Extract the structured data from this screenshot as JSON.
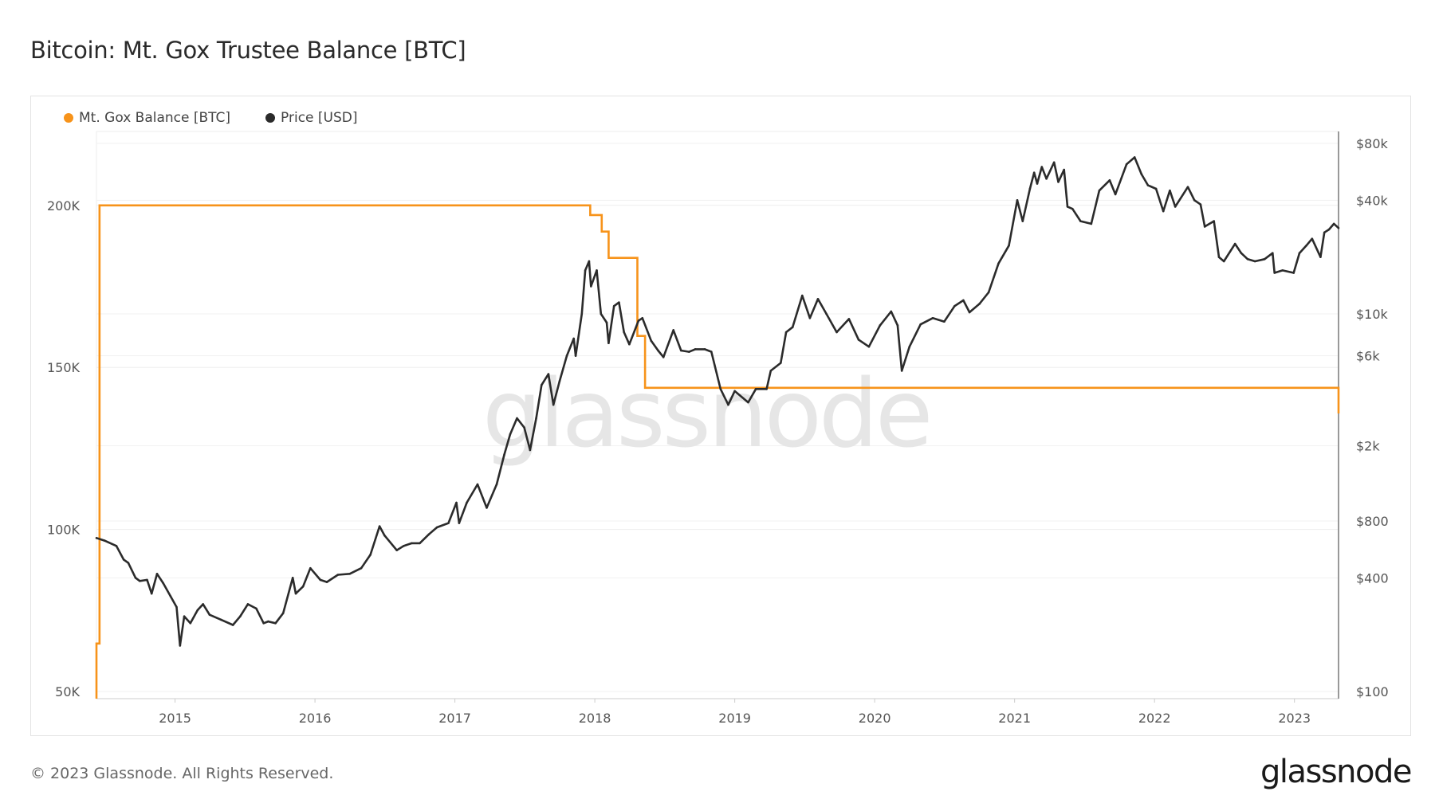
{
  "header": {
    "title": "Bitcoin: Mt. Gox Trustee Balance [BTC]"
  },
  "footer": {
    "copyright": "© 2023 Glassnode. All Rights Reserved.",
    "logo": "glassnode"
  },
  "watermark": "glassnode",
  "chart_data": {
    "type": "line",
    "title": "Bitcoin: Mt. Gox Trustee Balance [BTC]",
    "legend_position": "top-left",
    "grid": true,
    "colors": {
      "balance": "#f7931a",
      "price": "#2b2b2b"
    },
    "x_ticks": [
      "2015",
      "2016",
      "2017",
      "2018",
      "2019",
      "2020",
      "2021",
      "2022",
      "2023"
    ],
    "xlim": [
      "2014-06-10",
      "2023-04-26"
    ],
    "y_left": {
      "ticks": [
        50000,
        100000,
        150000,
        200000
      ],
      "tick_labels": [
        "50K",
        "100K",
        "150K",
        "200K"
      ],
      "scale": "linear",
      "ylim": [
        47800,
        222800
      ]
    },
    "y_right": {
      "ticks": [
        100,
        400,
        800,
        2000,
        6000,
        10000,
        40000,
        80000
      ],
      "tick_labels": [
        "$100",
        "$400",
        "$800",
        "$2k",
        "$6k",
        "$10k",
        "$40k",
        "$80k"
      ],
      "scale": "log",
      "ylim": [
        100,
        80000
      ]
    },
    "series": [
      {
        "name": "Mt. Gox Balance [BTC]",
        "axis": "left",
        "step": true,
        "x": [
          "2014-06-10",
          "2014-06-18",
          "2017-12-18",
          "2017-12-20",
          "2018-01-19",
          "2018-02-06",
          "2018-04-22",
          "2018-05-12",
          "2023-04-26"
        ],
        "values": [
          64800,
          200000,
          200000,
          197000,
          191900,
          183800,
          159700,
          143700,
          135800
        ]
      },
      {
        "name": "Price [USD]",
        "axis": "right",
        "x": [
          "2014-06-10",
          "2014-07-01",
          "2014-08-01",
          "2014-08-20",
          "2014-09-01",
          "2014-09-20",
          "2014-10-01",
          "2014-10-20",
          "2014-11-01",
          "2014-11-15",
          "2014-12-01",
          "2014-12-20",
          "2015-01-05",
          "2015-01-14",
          "2015-01-25",
          "2015-02-10",
          "2015-03-01",
          "2015-03-15",
          "2015-04-01",
          "2015-05-01",
          "2015-06-01",
          "2015-06-20",
          "2015-07-10",
          "2015-08-01",
          "2015-08-20",
          "2015-09-01",
          "2015-09-20",
          "2015-10-10",
          "2015-11-04",
          "2015-11-12",
          "2015-12-01",
          "2015-12-20",
          "2016-01-15",
          "2016-02-01",
          "2016-03-01",
          "2016-04-01",
          "2016-05-01",
          "2016-05-25",
          "2016-06-18",
          "2016-07-01",
          "2016-08-02",
          "2016-08-20",
          "2016-09-10",
          "2016-10-01",
          "2016-10-25",
          "2016-11-15",
          "2016-12-15",
          "2017-01-05",
          "2017-01-12",
          "2017-02-01",
          "2017-03-01",
          "2017-03-25",
          "2017-04-20",
          "2017-05-10",
          "2017-05-25",
          "2017-06-12",
          "2017-07-01",
          "2017-07-16",
          "2017-08-01",
          "2017-08-15",
          "2017-09-02",
          "2017-09-15",
          "2017-10-01",
          "2017-10-20",
          "2017-11-07",
          "2017-11-12",
          "2017-11-28",
          "2017-12-07",
          "2017-12-17",
          "2017-12-22",
          "2018-01-06",
          "2018-01-17",
          "2018-02-01",
          "2018-02-06",
          "2018-02-20",
          "2018-03-05",
          "2018-03-18",
          "2018-04-01",
          "2018-04-25",
          "2018-05-05",
          "2018-05-28",
          "2018-06-15",
          "2018-06-29",
          "2018-07-25",
          "2018-08-14",
          "2018-09-04",
          "2018-09-20",
          "2018-10-15",
          "2018-11-01",
          "2018-11-25",
          "2018-12-15",
          "2019-01-01",
          "2019-02-05",
          "2019-02-25",
          "2019-03-25",
          "2019-04-05",
          "2019-05-01",
          "2019-05-15",
          "2019-06-01",
          "2019-06-26",
          "2019-07-16",
          "2019-08-06",
          "2019-08-28",
          "2019-09-24",
          "2019-10-26",
          "2019-11-20",
          "2019-12-17",
          "2020-01-15",
          "2020-02-13",
          "2020-03-01",
          "2020-03-12",
          "2020-04-01",
          "2020-04-30",
          "2020-06-01",
          "2020-07-01",
          "2020-07-28",
          "2020-08-20",
          "2020-09-05",
          "2020-10-01",
          "2020-10-25",
          "2020-11-20",
          "2020-12-17",
          "2021-01-08",
          "2021-01-22",
          "2021-02-10",
          "2021-02-21",
          "2021-03-01",
          "2021-03-13",
          "2021-03-25",
          "2021-04-14",
          "2021-04-25",
          "2021-05-10",
          "2021-05-19",
          "2021-06-01",
          "2021-06-22",
          "2021-07-20",
          "2021-08-10",
          "2021-09-06",
          "2021-09-21",
          "2021-10-20",
          "2021-11-10",
          "2021-11-28",
          "2021-12-15",
          "2022-01-05",
          "2022-01-24",
          "2022-02-10",
          "2022-02-24",
          "2022-03-29",
          "2022-04-15",
          "2022-05-01",
          "2022-05-12",
          "2022-06-05",
          "2022-06-18",
          "2022-07-01",
          "2022-07-30",
          "2022-08-15",
          "2022-09-01",
          "2022-09-20",
          "2022-10-15",
          "2022-11-05",
          "2022-11-10",
          "2022-12-01",
          "2022-12-30",
          "2023-01-14",
          "2023-02-01",
          "2023-02-16",
          "2023-03-10",
          "2023-03-20",
          "2023-04-01",
          "2023-04-14",
          "2023-04-26"
        ],
        "values": [
          650,
          630,
          590,
          500,
          480,
          400,
          385,
          390,
          330,
          420,
          375,
          320,
          280,
          175,
          250,
          230,
          270,
          290,
          255,
          240,
          225,
          250,
          290,
          275,
          230,
          235,
          230,
          260,
          400,
          330,
          360,
          450,
          390,
          380,
          415,
          420,
          450,
          530,
          750,
          670,
          560,
          590,
          610,
          610,
          680,
          740,
          780,
          1000,
          780,
          1000,
          1250,
          940,
          1250,
          1800,
          2300,
          2800,
          2500,
          1900,
          2800,
          4200,
          4800,
          3300,
          4400,
          6000,
          7400,
          6000,
          10000,
          17000,
          19000,
          14000,
          17000,
          10000,
          9000,
          7000,
          11000,
          11500,
          8000,
          6900,
          9200,
          9500,
          7200,
          6400,
          5900,
          8200,
          6400,
          6300,
          6500,
          6500,
          6300,
          4000,
          3300,
          3900,
          3400,
          4000,
          4000,
          5000,
          5500,
          8000,
          8500,
          12500,
          9500,
          12000,
          10000,
          8000,
          9400,
          7300,
          6700,
          8700,
          10300,
          8700,
          5000,
          6700,
          8800,
          9500,
          9100,
          11000,
          11800,
          10200,
          11300,
          13000,
          18500,
          23000,
          40000,
          31000,
          46000,
          56000,
          49000,
          60000,
          52000,
          63500,
          50000,
          58000,
          37000,
          36000,
          31000,
          30000,
          45000,
          51000,
          43000,
          62000,
          67500,
          55000,
          48000,
          46000,
          35000,
          45000,
          37000,
          47000,
          40000,
          38000,
          29000,
          31000,
          20000,
          19000,
          23500,
          21000,
          19500,
          19000,
          19500,
          21000,
          16500,
          17000,
          16500,
          21000,
          23000,
          25000,
          20000,
          27000,
          28000,
          30000,
          28500
        ]
      }
    ]
  }
}
